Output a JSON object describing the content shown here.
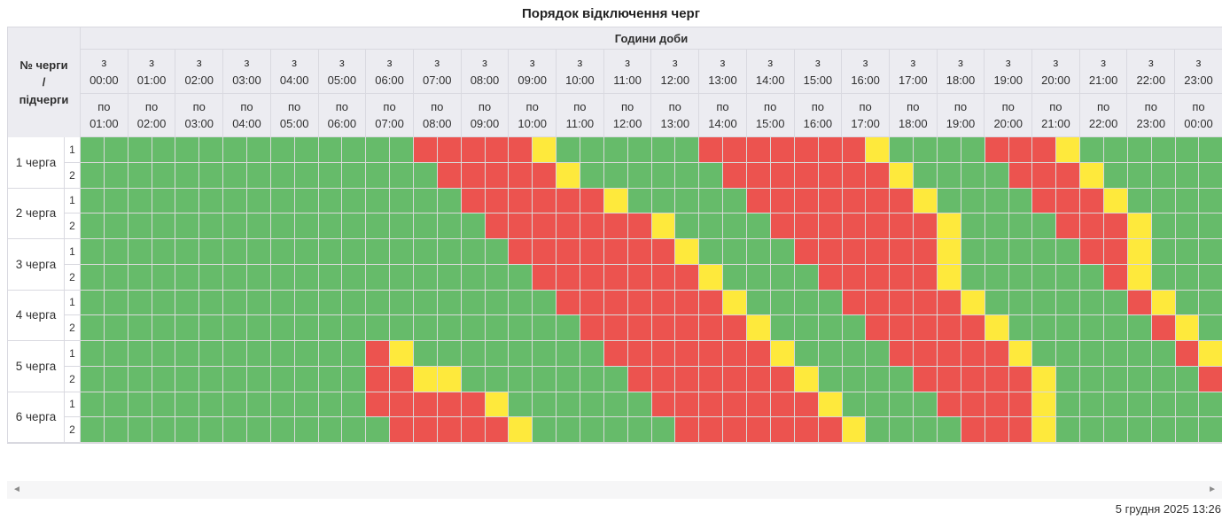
{
  "title": "Порядок відключення черг",
  "header": {
    "corner_label": "№ черги\n/\nпідчерги",
    "hours_label": "Години доби"
  },
  "chart_data": {
    "type": "heatmap",
    "title": "Порядок відключення черг",
    "x_axis_label": "Години доби",
    "from_prefix": "з",
    "to_prefix": "по",
    "from_times": [
      "00:00",
      "01:00",
      "02:00",
      "03:00",
      "04:00",
      "05:00",
      "06:00",
      "07:00",
      "08:00",
      "09:00",
      "10:00",
      "11:00",
      "12:00",
      "13:00",
      "14:00",
      "15:00",
      "16:00",
      "17:00",
      "18:00",
      "19:00",
      "20:00",
      "21:00",
      "22:00",
      "23:00"
    ],
    "to_times": [
      "01:00",
      "02:00",
      "03:00",
      "04:00",
      "05:00",
      "06:00",
      "07:00",
      "08:00",
      "09:00",
      "10:00",
      "11:00",
      "12:00",
      "13:00",
      "14:00",
      "15:00",
      "16:00",
      "17:00",
      "18:00",
      "19:00",
      "20:00",
      "21:00",
      "22:00",
      "23:00",
      "00:00"
    ],
    "slot_minutes": 30,
    "slots_per_row": 48,
    "states": {
      "G": {
        "color": "#66BB6A"
      },
      "R": {
        "color": "#EC534F"
      },
      "Y": {
        "color": "#FEE93C"
      }
    },
    "queues": [
      {
        "label": "1 черга",
        "subs": [
          {
            "num": "1",
            "slots": "GGGGGGGGGGGGGGRRRRRYGGGGGGRRRRRRRYGGGGRRRYGGGGGG"
          },
          {
            "num": "2",
            "slots": "GGGGGGGGGGGGGGGRRRRRYGGGGGGRRRRRRRYGGGGRRRYGGGGG"
          }
        ]
      },
      {
        "label": "2 черга",
        "subs": [
          {
            "num": "1",
            "slots": "GGGGGGGGGGGGGGGGRRRRRRYGGGGGRRRRRRRYGGGGRRRYGGGG"
          },
          {
            "num": "2",
            "slots": "GGGGGGGGGGGGGGGGGRRRRRRRYGGGGRRRRRRRYGGGGRRRYGGG"
          }
        ]
      },
      {
        "label": "3 черга",
        "subs": [
          {
            "num": "1",
            "slots": "GGGGGGGGGGGGGGGGGGRRRRRRRYGGGGRRRRRRYGGGGGRRYGGG"
          },
          {
            "num": "2",
            "slots": "GGGGGGGGGGGGGGGGGGGRRRRRRRYGGGGRRRRRYGGGGGGRYGGG"
          }
        ]
      },
      {
        "label": "4 черга",
        "subs": [
          {
            "num": "1",
            "slots": "GGGGGGGGGGGGGGGGGGGGRRRRRRRYGGGGRRRRRYGGGGGGRYGG"
          },
          {
            "num": "2",
            "slots": "GGGGGGGGGGGGGGGGGGGGGRRRRRRRYGGGGRRRRRYGGGGGGRYG"
          }
        ]
      },
      {
        "label": "5 черга",
        "subs": [
          {
            "num": "1",
            "slots": "GGGGGGGGGGGGRYGGGGGGGGRRRRRRRYGGGGRRRRRYGGGGGGRY"
          },
          {
            "num": "2",
            "slots": "GGGGGGGGGGGGRRYYGGGGGGGRRRRRRRYGGGGRRRRRYGGGGGGR"
          }
        ]
      },
      {
        "label": "6 черга",
        "subs": [
          {
            "num": "1",
            "slots": "GGGGGGGGGGGGRRRRRYGGGGGGRRRRRRRYGGGGRRRRYGGGGGGG"
          },
          {
            "num": "2",
            "slots": "GGGGGGGGGGGGGRRRRRYGGGGGGRRRRRRRYGGGGRRRYGGGGGGG"
          }
        ]
      }
    ]
  },
  "scrollbar": {
    "left_arrow": "◄",
    "right_arrow": "►"
  },
  "footer": {
    "timestamp": "5 грудня 2025 13:26"
  }
}
